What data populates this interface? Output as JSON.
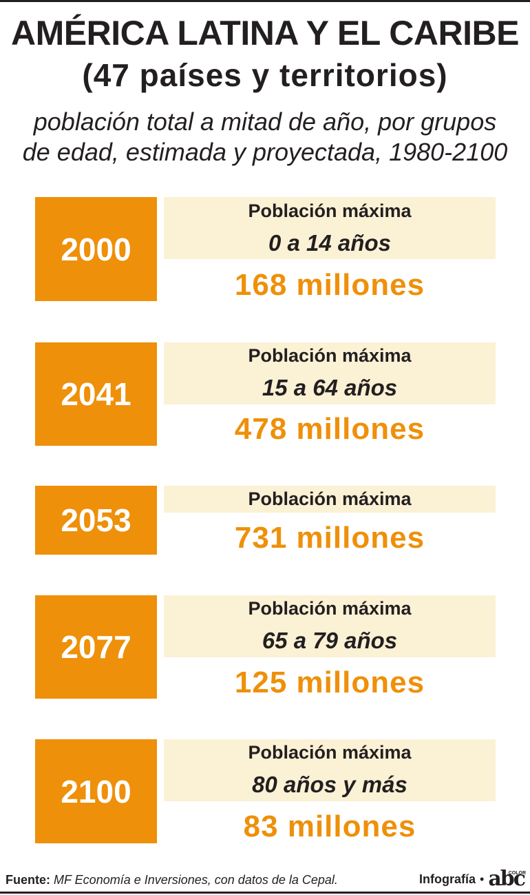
{
  "header": {
    "title": "AMÉRICA LATINA Y EL CARIBE",
    "subtitle": "(47 países y territorios)",
    "description_line1": "población total a mitad de año, por grupos",
    "description_line2": "de edad, estimada y proyectada, 1980-2100"
  },
  "rows": [
    {
      "year": "2000",
      "label": "Población máxima",
      "age_group": "0 a 14 años",
      "value": "168 millones"
    },
    {
      "year": "2041",
      "label": "Población máxima",
      "age_group": "15 a 64 años",
      "value": "478 millones"
    },
    {
      "year": "2053",
      "label": "Población máxima",
      "value": "731 millones"
    },
    {
      "year": "2077",
      "label": "Población máxima",
      "age_group": "65 a 79 años",
      "value": "125 millones"
    },
    {
      "year": "2100",
      "label": "Población máxima",
      "age_group": "80 años y más",
      "value": "83 millones"
    }
  ],
  "footer": {
    "source_label": "Fuente:",
    "source_text": "MF Economía e Inversiones, con datos de la Cepal.",
    "credit_label": "Infografía",
    "bullet": "•",
    "logo_text": "abc",
    "logo_sub": "COLOR"
  },
  "colors": {
    "accent": "#ee9009",
    "band": "#fbf1d5",
    "text": "#231f20"
  }
}
